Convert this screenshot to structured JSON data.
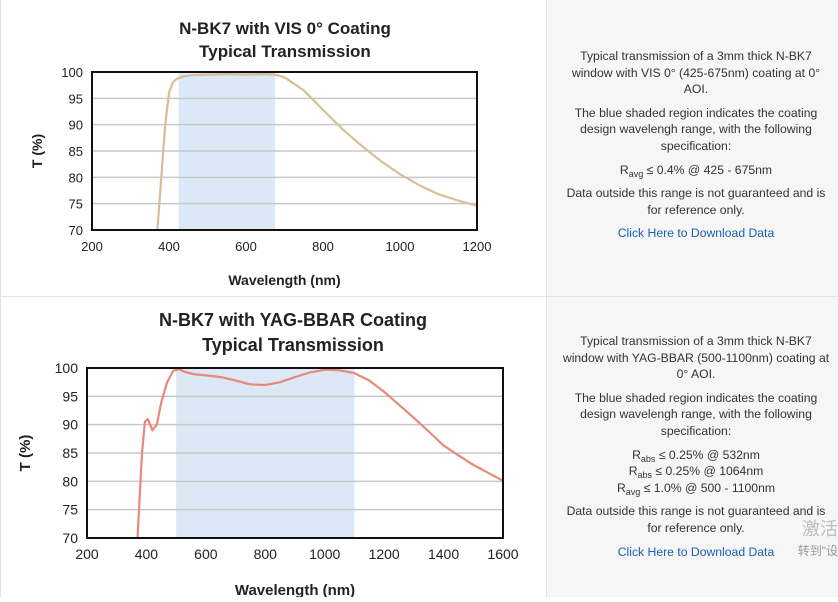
{
  "chart_data": [
    {
      "type": "line",
      "title": "N-BK7 with VIS 0° Coating",
      "subtitle": "Typical Transmission",
      "xlabel": "Wavelength (nm)",
      "ylabel": "T (%)",
      "xlim": [
        200,
        1200
      ],
      "ylim": [
        70,
        100
      ],
      "xticks": [
        200,
        400,
        600,
        800,
        1000,
        1200
      ],
      "yticks": [
        70,
        75,
        80,
        85,
        90,
        95,
        100
      ],
      "grid": true,
      "shaded_range": [
        425,
        675
      ],
      "line_color": "#d6bf97",
      "shade_color": "#dce8f5",
      "series": [
        {
          "x": [
            370,
            380,
            390,
            400,
            410,
            420,
            440,
            460,
            500,
            550,
            600,
            650,
            675,
            700,
            750,
            800,
            850,
            900,
            950,
            1000,
            1050,
            1100,
            1150,
            1200
          ],
          "y": [
            70,
            80,
            90,
            96,
            98,
            98.7,
            99.2,
            99.4,
            99.5,
            99.6,
            99.5,
            99.6,
            99.5,
            99.0,
            96.5,
            92.8,
            89.2,
            86.0,
            83.1,
            80.6,
            78.5,
            76.8,
            75.6,
            74.6
          ]
        }
      ]
    },
    {
      "type": "line",
      "title": "N-BK7 with YAG-BBAR Coating",
      "subtitle": "Typical Transmission",
      "xlabel": "Wavelength (nm)",
      "ylabel": "T (%)",
      "xlim": [
        200,
        1600
      ],
      "ylim": [
        70,
        100
      ],
      "xticks": [
        200,
        400,
        600,
        800,
        1000,
        1200,
        1400,
        1600
      ],
      "yticks": [
        70,
        75,
        80,
        85,
        90,
        95,
        100
      ],
      "grid": true,
      "shaded_range": [
        500,
        1100
      ],
      "line_color": "#e8897c",
      "shade_color": "#dce8f5",
      "series": [
        {
          "x": [
            370,
            385,
            395,
            405,
            420,
            435,
            450,
            470,
            490,
            510,
            530,
            560,
            600,
            650,
            700,
            750,
            800,
            850,
            900,
            950,
            1000,
            1050,
            1100,
            1150,
            1200,
            1250,
            1300,
            1350,
            1400,
            1450,
            1500,
            1550,
            1600
          ],
          "y": [
            70,
            85,
            90.5,
            91,
            89,
            90,
            94,
            97.5,
            99.5,
            99.8,
            99.3,
            98.9,
            98.7,
            98.4,
            97.8,
            97.1,
            97.0,
            97.5,
            98.4,
            99.2,
            99.7,
            99.6,
            99.1,
            97.8,
            95.8,
            93.5,
            91.2,
            88.8,
            86.3,
            84.6,
            82.9,
            81.5,
            80.1
          ]
        }
      ]
    }
  ],
  "panels": [
    {
      "desc1": "Typical transmission of a 3mm thick N-BK7 window with VIS 0° (425-675nm) coating at 0° AOI.",
      "desc2": "The blue shaded region indicates the coating design wavelengh range, with the following specification:",
      "specs": [
        {
          "sym": "R",
          "sub": "avg",
          "rest": "≤ 0.4% @ 425 - 675nm"
        }
      ],
      "desc3": "Data outside this range is not guaranteed and is for reference only.",
      "link": "Click Here to Download Data"
    },
    {
      "desc1": "Typical transmission of a 3mm thick N-BK7 window with YAG-BBAR (500-1100nm) coating at 0° AOI.",
      "desc2": "The blue shaded region indicates the coating design wavelengh range, with the following specification:",
      "specs": [
        {
          "sym": "R",
          "sub": "abs",
          "rest": "≤ 0.25% @ 532nm"
        },
        {
          "sym": "R",
          "sub": "abs",
          "rest": "≤ 0.25% @ 1064nm"
        },
        {
          "sym": "R",
          "sub": "avg",
          "rest": "≤ 1.0% @ 500 - 1100nm"
        }
      ],
      "desc3": "Data outside this range is not guaranteed and is for reference only.",
      "link": "Click Here to Download Data"
    }
  ],
  "watermark": {
    "line1": "激活",
    "line2": "转到\"设"
  }
}
